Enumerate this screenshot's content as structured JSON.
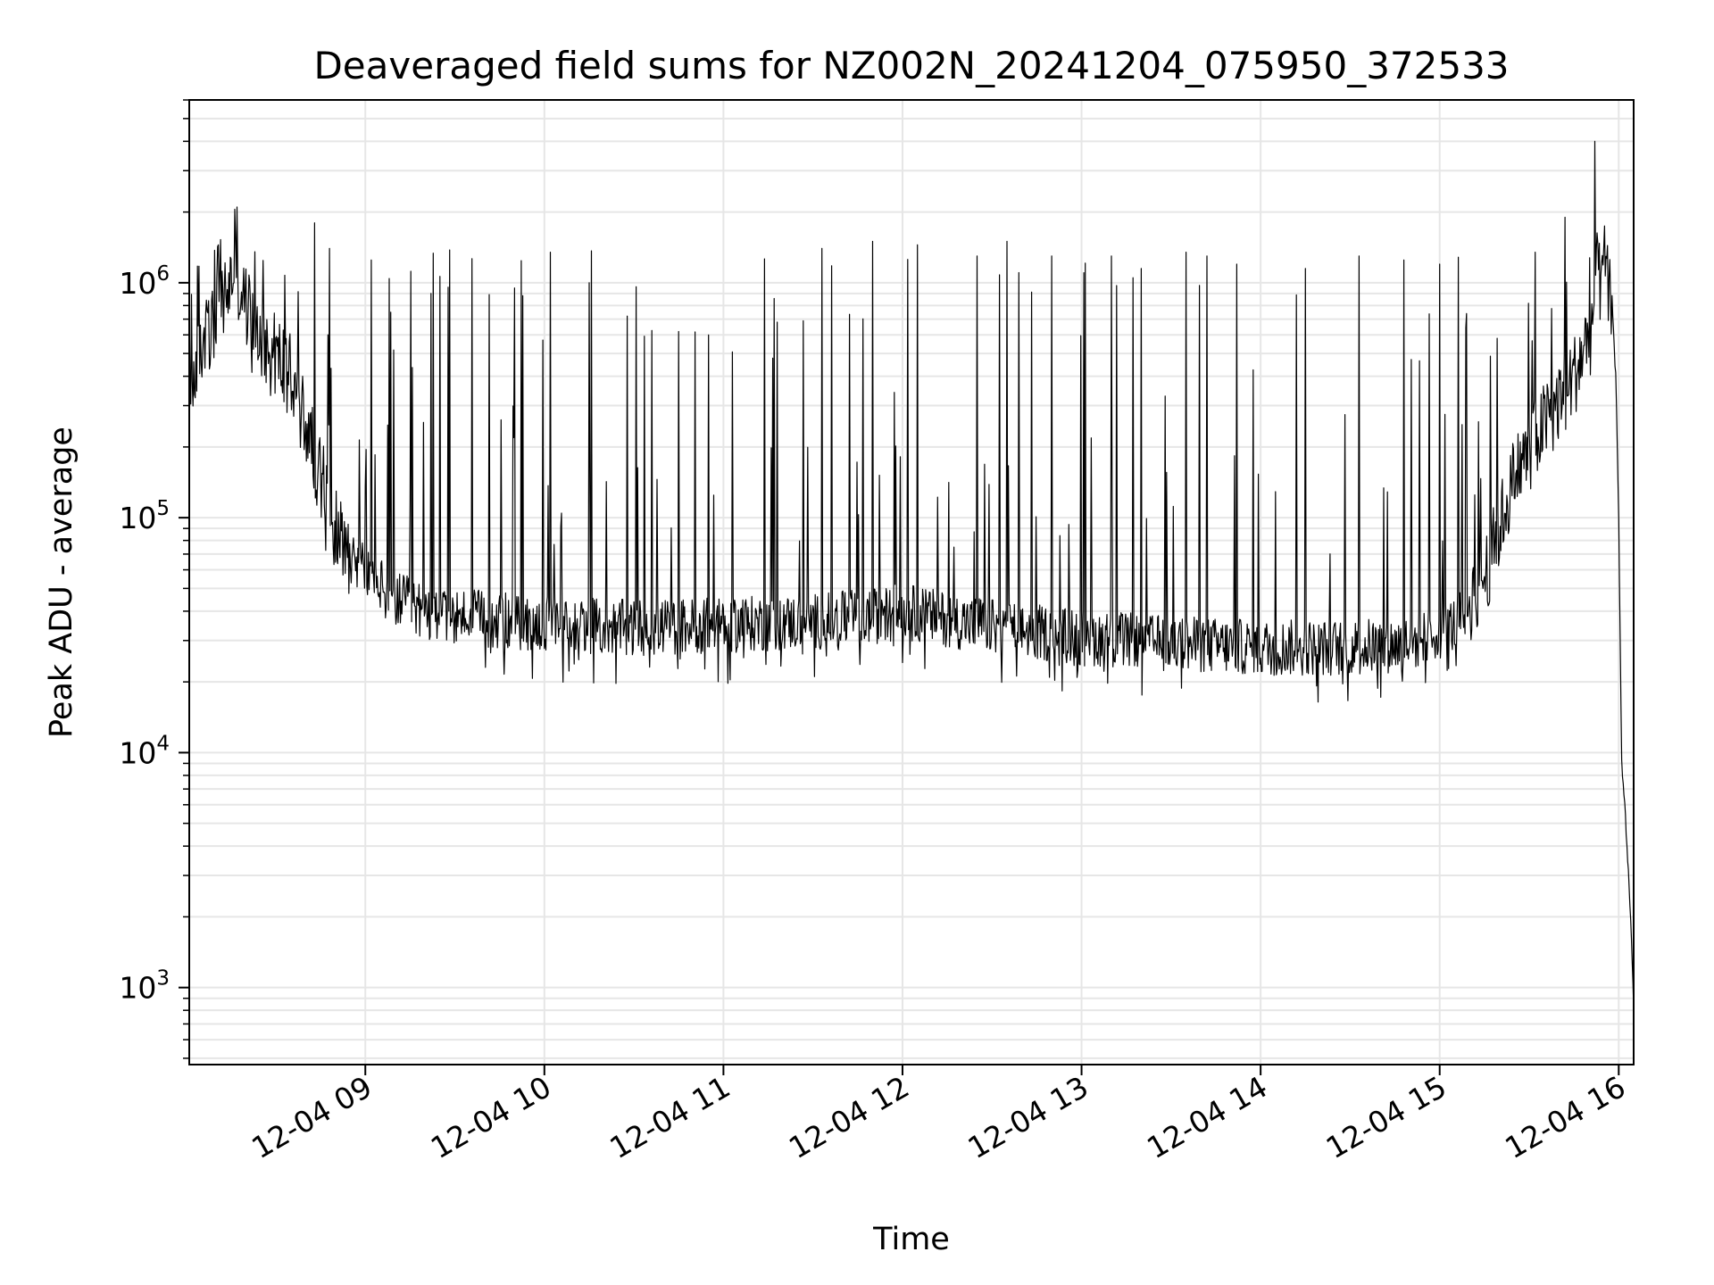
{
  "chart_data": {
    "type": "line",
    "title": "Deaveraged field sums for NZ002N_20241204_075950_372533",
    "xlabel": "Time",
    "ylabel": "Peak ADU - average",
    "xlim": [
      "2024-12-04 08:01:00",
      "2024-12-04 16:05:00"
    ],
    "ylim": [
      470,
      6000000
    ],
    "yscale": "log",
    "grid": true,
    "x_ticks": [
      {
        "value": "2024-12-04 09:00",
        "label": "12-04 09"
      },
      {
        "value": "2024-12-04 10:00",
        "label": "12-04 10"
      },
      {
        "value": "2024-12-04 11:00",
        "label": "12-04 11"
      },
      {
        "value": "2024-12-04 12:00",
        "label": "12-04 12"
      },
      {
        "value": "2024-12-04 13:00",
        "label": "12-04 13"
      },
      {
        "value": "2024-12-04 14:00",
        "label": "12-04 14"
      },
      {
        "value": "2024-12-04 15:00",
        "label": "12-04 15"
      },
      {
        "value": "2024-12-04 16:00",
        "label": "12-04 16"
      }
    ],
    "y_ticks": [
      {
        "value": 1000,
        "base": "10",
        "exp": "3"
      },
      {
        "value": 10000,
        "base": "10",
        "exp": "4"
      },
      {
        "value": 100000,
        "base": "10",
        "exp": "5"
      },
      {
        "value": 1000000,
        "base": "10",
        "exp": "6"
      }
    ],
    "series": [
      {
        "color": "#000000",
        "baseline": {
          "x": [
            "2024-12-04 08:01",
            "2024-12-04 08:05",
            "2024-12-04 08:10",
            "2024-12-04 08:16",
            "2024-12-04 08:20",
            "2024-12-04 08:25",
            "2024-12-04 08:30",
            "2024-12-04 08:35",
            "2024-12-04 08:40",
            "2024-12-04 08:45",
            "2024-12-04 08:50",
            "2024-12-04 08:55",
            "2024-12-04 09:00",
            "2024-12-04 09:10",
            "2024-12-04 09:20",
            "2024-12-04 09:40",
            "2024-12-04 10:00",
            "2024-12-04 10:30",
            "2024-12-04 11:00",
            "2024-12-04 11:30",
            "2024-12-04 11:50",
            "2024-12-04 12:00",
            "2024-12-04 12:20",
            "2024-12-04 12:40",
            "2024-12-04 13:00",
            "2024-12-04 13:30",
            "2024-12-04 14:00",
            "2024-12-04 14:30",
            "2024-12-04 14:50",
            "2024-12-04 15:05",
            "2024-12-04 15:15",
            "2024-12-04 15:25",
            "2024-12-04 15:35",
            "2024-12-04 15:45",
            "2024-12-04 15:50",
            "2024-12-04 15:53",
            "2024-12-04 15:56",
            "2024-12-04 15:58",
            "2024-12-04 15:59",
            "2024-12-04 16:00",
            "2024-12-04 16:01",
            "2024-12-04 16:02",
            "2024-12-04 16:03",
            "2024-12-04 16:04",
            "2024-12-04 16:05"
          ],
          "y": [
            350000,
            550000,
            700000,
            1100000,
            800000,
            600000,
            500000,
            400000,
            250000,
            150000,
            90000,
            70000,
            60000,
            45000,
            40000,
            37000,
            35000,
            34000,
            35000,
            36000,
            38000,
            40000,
            36000,
            33000,
            31000,
            29000,
            28000,
            28000,
            29000,
            35000,
            55000,
            150000,
            250000,
            400000,
            600000,
            1000000,
            1000000,
            700000,
            400000,
            100000,
            9000,
            6000,
            3500,
            2000,
            800
          ]
        },
        "spikes": [
          {
            "x": "2024-12-04 08:17",
            "y": 2100000
          },
          {
            "x": "2024-12-04 08:43",
            "y": 1800000
          },
          {
            "x": "2024-12-04 08:48",
            "y": 1400000
          },
          {
            "x": "2024-12-04 09:02",
            "y": 1250000
          },
          {
            "x": "2024-12-04 09:22",
            "y": 900000
          },
          {
            "x": "2024-12-04 09:50",
            "y": 950000
          },
          {
            "x": "2024-12-04 10:02",
            "y": 1350000
          },
          {
            "x": "2024-12-04 10:15",
            "y": 1000000
          },
          {
            "x": "2024-12-04 10:45",
            "y": 620000
          },
          {
            "x": "2024-12-04 10:55",
            "y": 600000
          },
          {
            "x": "2024-12-04 11:18",
            "y": 680000
          },
          {
            "x": "2024-12-04 11:33",
            "y": 1400000
          },
          {
            "x": "2024-12-04 11:50",
            "y": 1500000
          },
          {
            "x": "2024-12-04 12:05",
            "y": 1450000
          },
          {
            "x": "2024-12-04 12:25",
            "y": 1300000
          },
          {
            "x": "2024-12-04 12:35",
            "y": 1500000
          },
          {
            "x": "2024-12-04 12:50",
            "y": 1300000
          },
          {
            "x": "2024-12-04 13:10",
            "y": 1300000
          },
          {
            "x": "2024-12-04 13:20",
            "y": 1150000
          },
          {
            "x": "2024-12-04 13:35",
            "y": 1350000
          },
          {
            "x": "2024-12-04 13:42",
            "y": 1300000
          },
          {
            "x": "2024-12-04 13:52",
            "y": 1200000
          },
          {
            "x": "2024-12-04 14:15",
            "y": 1150000
          },
          {
            "x": "2024-12-04 14:33",
            "y": 1300000
          },
          {
            "x": "2024-12-04 14:48",
            "y": 1250000
          },
          {
            "x": "2024-12-04 15:00",
            "y": 1200000
          },
          {
            "x": "2024-12-04 15:32",
            "y": 1350000
          },
          {
            "x": "2024-12-04 15:42",
            "y": 1900000
          },
          {
            "x": "2024-12-04 15:52",
            "y": 4000000
          }
        ]
      }
    ]
  }
}
